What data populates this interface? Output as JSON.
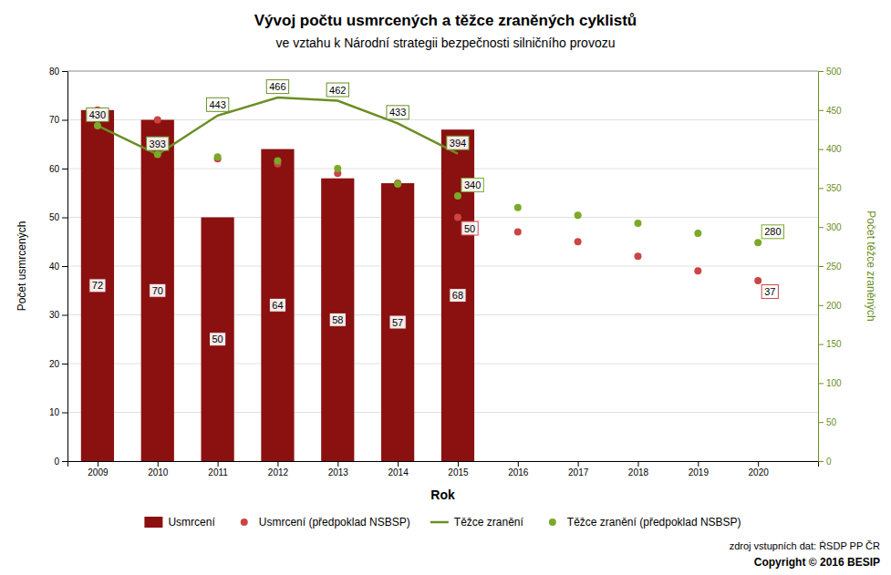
{
  "chart_data": {
    "type": "bar",
    "title": "Vývoj počtu usmrcených a těžce zraněných cyklistů",
    "subtitle": "ve vztahu k Národní strategii bezpečnosti silničního provozu",
    "x_label": "Rok",
    "y_label": "Počet usmrcených",
    "y2_label": "Počet těžce zraněných",
    "xlim": [
      2008.5,
      2021.0
    ],
    "xticks": [
      2009,
      2010,
      2011,
      2012,
      2013,
      2014,
      2015,
      2016,
      2017,
      2018,
      2019,
      2020
    ],
    "ylim": [
      0,
      80
    ],
    "yticks": [
      0,
      10,
      20,
      30,
      40,
      50,
      60,
      70,
      80
    ],
    "y2lim": [
      0,
      500
    ],
    "y2ticks": [
      0,
      50,
      100,
      150,
      200,
      250,
      300,
      350,
      400,
      450,
      500
    ],
    "grid": true,
    "legend": "bottom",
    "series": [
      {
        "name": "Usmrcení",
        "type": "bar",
        "color": "#8B1010",
        "data_labels": true,
        "x": [
          2009,
          2010,
          2011,
          2012,
          2013,
          2014,
          2015
        ],
        "values": [
          72,
          70,
          50,
          64,
          58,
          57,
          68
        ]
      },
      {
        "name": "Usmrcení (předpoklad NSBSP)",
        "type": "scatter",
        "marker": "circle",
        "color": "#cc4444",
        "x": [
          2009,
          2010,
          2011,
          2012,
          2013,
          2014,
          2015,
          2016,
          2017,
          2018,
          2019,
          2020
        ],
        "values": [
          72,
          70,
          62,
          61,
          59,
          57,
          50,
          47,
          45,
          42,
          39,
          37
        ]
      },
      {
        "name": "Těžce zranění",
        "type": "line",
        "line_style": "solid",
        "color": "#6B8E23",
        "axis": "y2",
        "data_labels": true,
        "x": [
          2009,
          2010,
          2011,
          2012,
          2013,
          2014,
          2015
        ],
        "values": [
          430,
          393,
          443,
          466,
          462,
          433,
          394
        ]
      },
      {
        "name": "Těžce zranění (předpoklad NSBSP)",
        "type": "scatter",
        "marker": "circle",
        "color": "#7aaa28",
        "axis": "y2",
        "x": [
          2009,
          2010,
          2011,
          2012,
          2013,
          2014,
          2015,
          2016,
          2017,
          2018,
          2019,
          2020
        ],
        "values": [
          430,
          393,
          390,
          385,
          375,
          355,
          340,
          325,
          315,
          305,
          292,
          280
        ]
      }
    ],
    "annotations": [
      {
        "text": "340",
        "x": 2015,
        "y": 340,
        "axis": "y2"
      },
      {
        "text": "280",
        "x": 2020,
        "y": 280,
        "axis": "y2"
      },
      {
        "text": "50",
        "x": 2015,
        "y": 50,
        "axis": "y"
      },
      {
        "text": "37",
        "x": 2020,
        "y": 37,
        "axis": "y"
      }
    ],
    "source": "zdroj vstupních dat: ŘSDP PP ČR",
    "copyright": "Copyright © 2016 BESIP"
  }
}
